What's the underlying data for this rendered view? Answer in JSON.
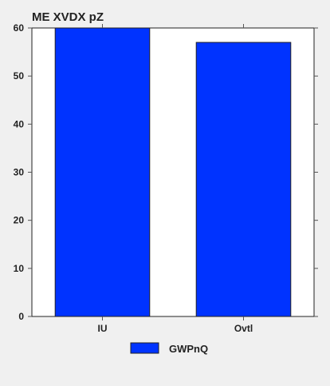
{
  "chart_data": {
    "type": "bar",
    "title": "ME XVDX pZ",
    "categories": [
      "IU",
      "Ovtl"
    ],
    "series": [
      {
        "name": "GWPnQ",
        "values": [
          60,
          57
        ],
        "color": "#0033ff"
      }
    ],
    "ylim": [
      0,
      60
    ],
    "yticks": [
      0,
      10,
      20,
      30,
      40,
      50,
      60
    ],
    "grid": false,
    "legend": "bottom-center"
  }
}
